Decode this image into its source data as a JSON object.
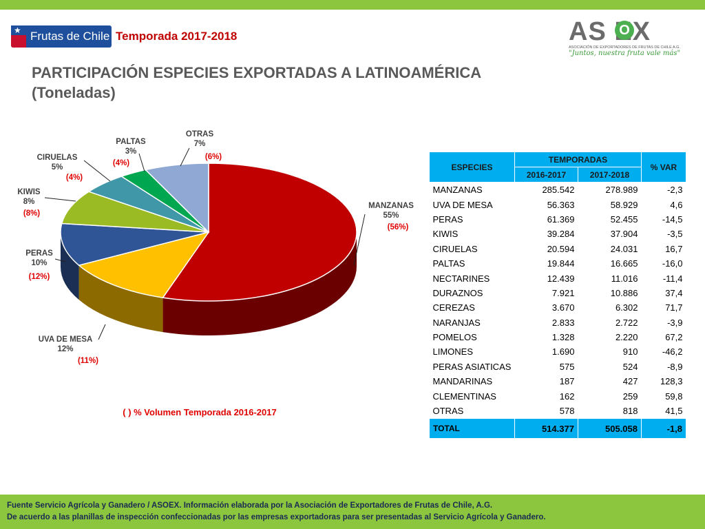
{
  "header": {
    "brand_text": "Frutas de Chile",
    "season": "Temporada 2017-2018",
    "asoex": {
      "word": "AS EX",
      "leaf": "O",
      "sub": "ASOCIACIÓN DE EXPORTADORES DE FRUTAS DE CHILE A.G.",
      "slogan": "\"Juntos, nuestra fruta vale más\""
    }
  },
  "title_line1": "PARTICIPACIÓN ESPECIES EXPORTADAS A LATINOAMÉRICA",
  "title_line2": "(Toneladas)",
  "legend_note": "( ) % Volumen Temporada 2016-2017",
  "colors": {
    "manzanas": "#c00000",
    "uva": "#ffc000",
    "peras": "#2f5597",
    "kiwis": "#9bbb24",
    "ciruelas": "#3f97a8",
    "paltas": "#00a650",
    "otras": "#8fa8d4",
    "accent": "#00aeef",
    "brand_green": "#8cc63f"
  },
  "chart_data": {
    "type": "pie",
    "title": "PARTICIPACIÓN ESPECIES EXPORTADAS A LATINOAMÉRICA (Toneladas)",
    "slices": [
      {
        "name": "MANZANAS",
        "pct": "55%",
        "prev": "(56%)",
        "value": 55
      },
      {
        "name": "UVA DE MESA",
        "pct": "12%",
        "prev": "(11%)",
        "value": 12
      },
      {
        "name": "PERAS",
        "pct": "10%",
        "prev": "(12%)",
        "value": 10
      },
      {
        "name": "KIWIS",
        "pct": "8%",
        "prev": "(8%)",
        "value": 8
      },
      {
        "name": "CIRUELAS",
        "pct": "5%",
        "prev": "(4%)",
        "value": 5
      },
      {
        "name": "PALTAS",
        "pct": "3%",
        "prev": "(4%)",
        "value": 3
      },
      {
        "name": "OTRAS",
        "pct": "7%",
        "prev": "(6%)",
        "value": 7
      }
    ]
  },
  "table": {
    "col_species": "ESPECIES",
    "col_group": "TEMPORADAS",
    "col_2016": "2016-2017",
    "col_2017": "2017-2018",
    "col_var": "% VAR",
    "rows": [
      [
        "MANZANAS",
        "285.542",
        "278.989",
        "-2,3"
      ],
      [
        "UVA DE MESA",
        "56.363",
        "58.929",
        "4,6"
      ],
      [
        "PERAS",
        "61.369",
        "52.455",
        "-14,5"
      ],
      [
        "KIWIS",
        "39.284",
        "37.904",
        "-3,5"
      ],
      [
        "CIRUELAS",
        "20.594",
        "24.031",
        "16,7"
      ],
      [
        "PALTAS",
        "19.844",
        "16.665",
        "-16,0"
      ],
      [
        "NECTARINES",
        "12.439",
        "11.016",
        "-11,4"
      ],
      [
        "DURAZNOS",
        "7.921",
        "10.886",
        "37,4"
      ],
      [
        "CEREZAS",
        "3.670",
        "6.302",
        "71,7"
      ],
      [
        "NARANJAS",
        "2.833",
        "2.722",
        "-3,9"
      ],
      [
        "POMELOS",
        "1.328",
        "2.220",
        "67,2"
      ],
      [
        "LIMONES",
        "1.690",
        "910",
        "-46,2"
      ],
      [
        "PERAS ASIATICAS",
        "575",
        "524",
        "-8,9"
      ],
      [
        "MANDARINAS",
        "187",
        "427",
        "128,3"
      ],
      [
        "CLEMENTINAS",
        "162",
        "259",
        "59,8"
      ],
      [
        "OTRAS",
        "578",
        "818",
        "41,5"
      ]
    ],
    "total": [
      "TOTAL",
      "514.377",
      "505.058",
      "-1,8"
    ]
  },
  "footer": {
    "line1": "Fuente Servicio Agrícola y Ganadero / ASOEX. Información elaborada por la Asociación de Exportadores de  Frutas de Chile, A.G.",
    "line2": "De acuerdo a las planillas de inspección confeccionadas por las empresas exportadoras  para ser presentadas al Servicio Agrícola y Ganadero."
  }
}
